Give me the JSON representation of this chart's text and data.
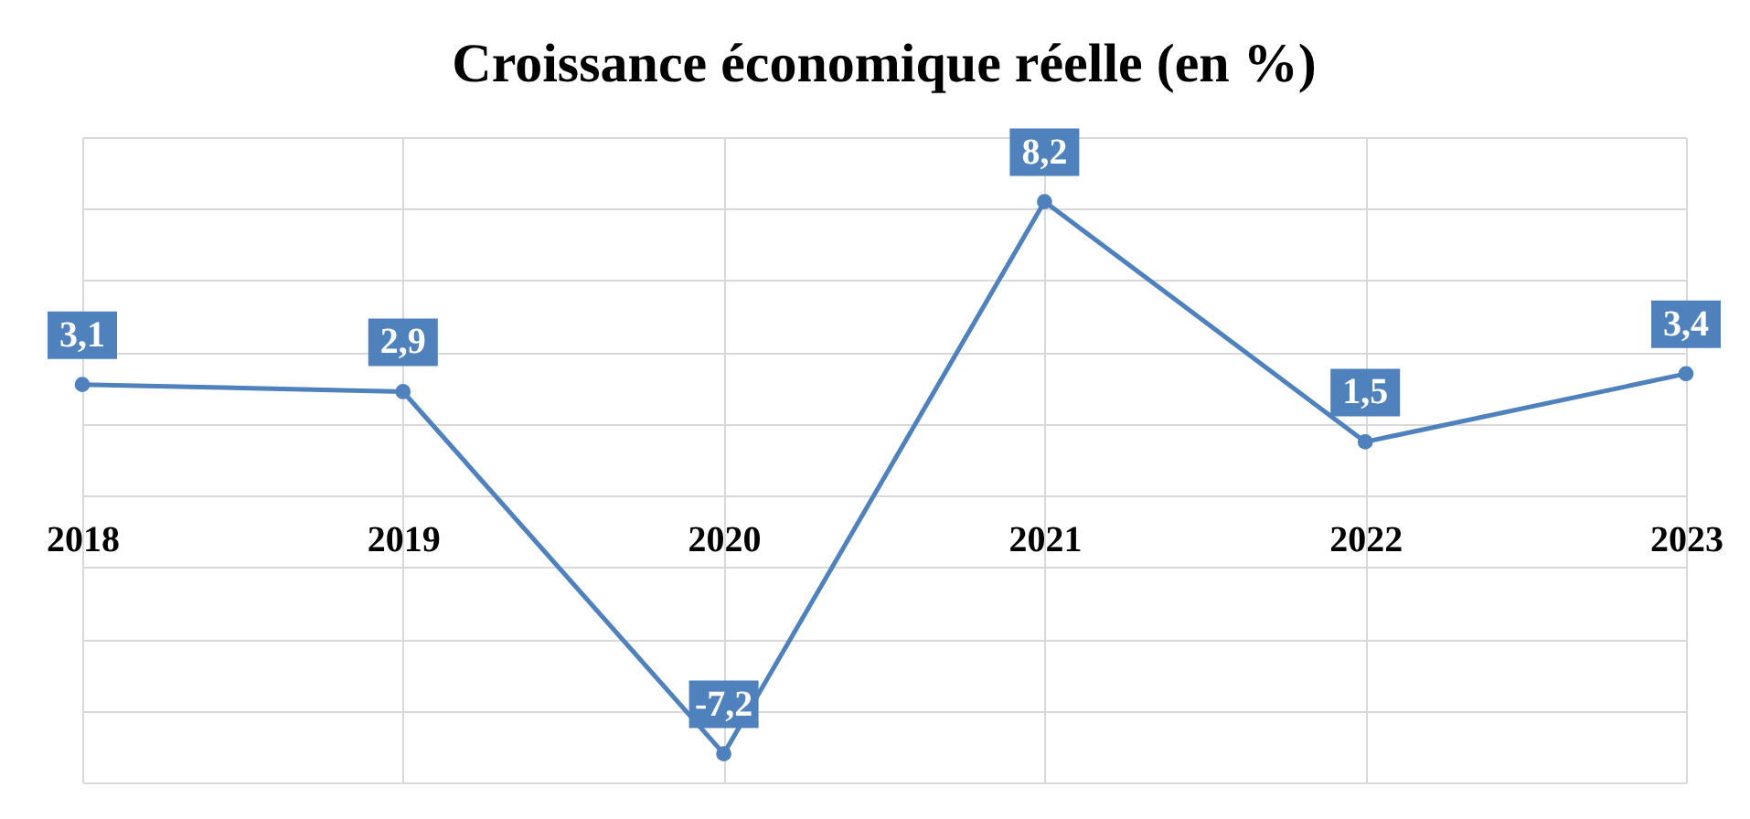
{
  "chart_data": {
    "type": "line",
    "title": "Croissance économique réelle (en %)",
    "categories": [
      "2018",
      "2019",
      "2020",
      "2021",
      "2022",
      "2023"
    ],
    "series": [
      {
        "color": "#4f81bd",
        "values": [
          3.1,
          2.9,
          -7.2,
          8.2,
          1.5,
          3.4
        ],
        "value_labels": [
          "3,1",
          "2,9",
          "-7,2",
          "8,2",
          "1,5",
          "3,4"
        ]
      }
    ],
    "ylim": [
      -8,
      10
    ],
    "yticks": [
      {
        "value": -8,
        "label": null
      },
      {
        "value": -6,
        "label": null
      },
      {
        "value": -4,
        "label": null
      },
      {
        "value": -2,
        "label": null
      },
      {
        "value": 0,
        "label": null
      },
      {
        "value": 2,
        "label": null
      },
      {
        "value": 4,
        "label": null
      },
      {
        "value": 6,
        "label": null
      },
      {
        "value": 8,
        "label": null
      },
      {
        "value": 10,
        "label": null
      }
    ],
    "grid": true,
    "tick_labels": "x",
    "marker": "circle"
  }
}
